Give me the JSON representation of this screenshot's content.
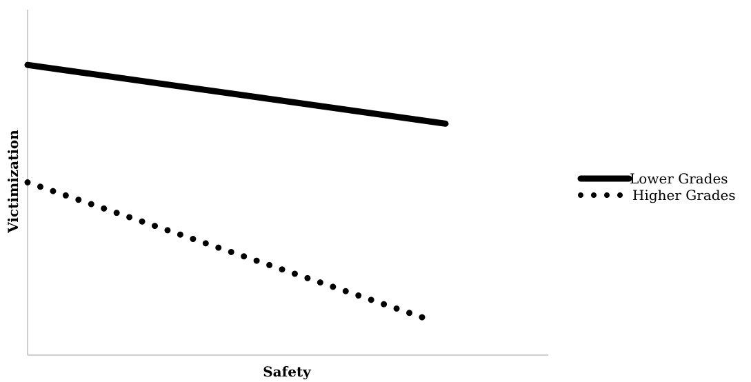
{
  "chart_data": {
    "type": "line",
    "title": "",
    "xlabel": "Safety",
    "ylabel": "Victimization",
    "x": [
      0,
      1
    ],
    "xlim": [
      0,
      1.25
    ],
    "ylim": [
      0,
      1
    ],
    "grid": false,
    "legend_position": "right",
    "series": [
      {
        "name": "Lower Grades",
        "values": [
          0.84,
          0.67
        ],
        "style": "solid",
        "color": "#000000"
      },
      {
        "name": "Higher Grades",
        "values": [
          0.5,
          0.1
        ],
        "style": "dotted",
        "color": "#000000"
      }
    ]
  }
}
